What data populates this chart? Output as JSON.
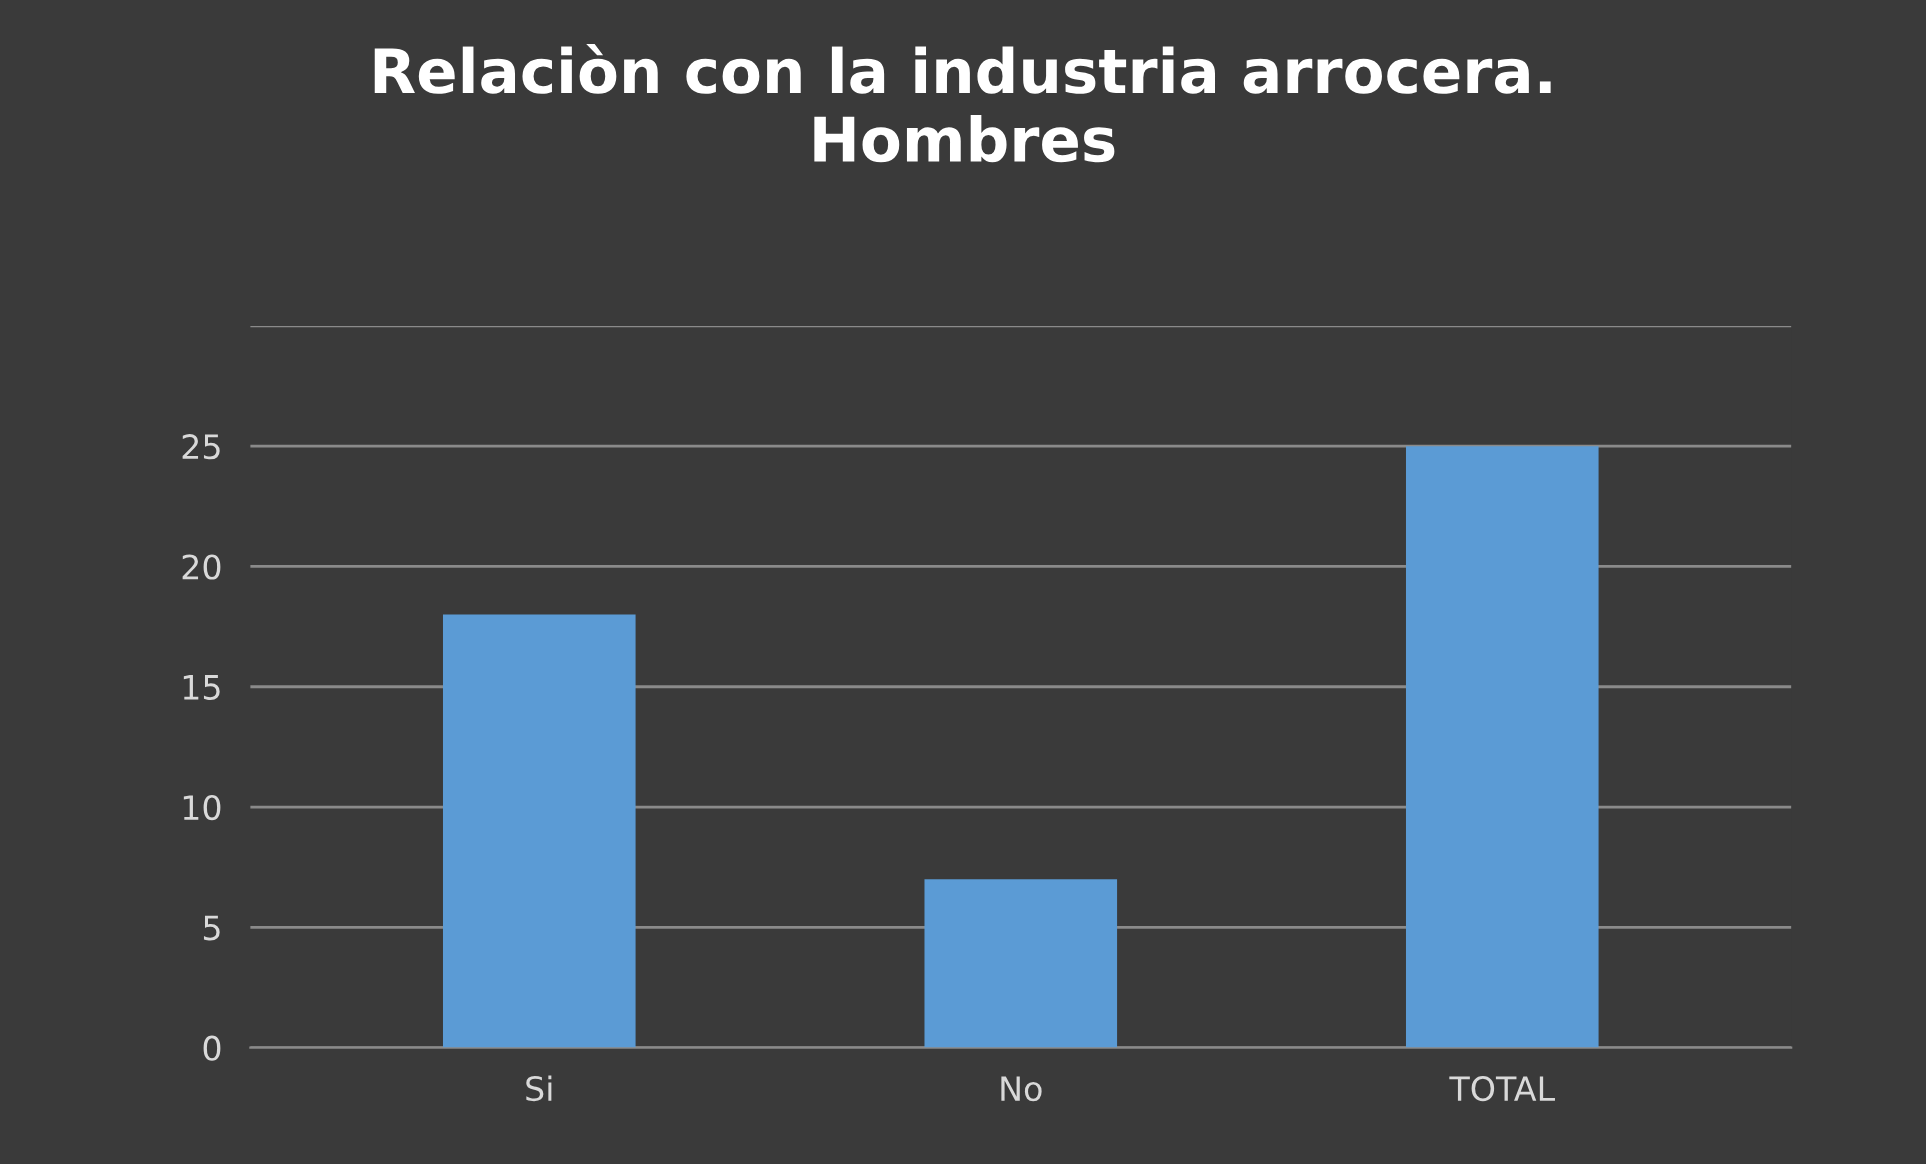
{
  "chart_data": {
    "type": "bar",
    "title": "Relaciòn con la industria arrocera.\nHombres",
    "categories": [
      "Si",
      "No",
      "TOTAL"
    ],
    "values": [
      18,
      7,
      25
    ],
    "color": "#5b9bd5",
    "ylim": [
      0,
      30
    ],
    "yticks": [
      0,
      5,
      10,
      15,
      20,
      25,
      {
        "value": 30,
        "label": null
      }
    ],
    "grid": "y"
  }
}
